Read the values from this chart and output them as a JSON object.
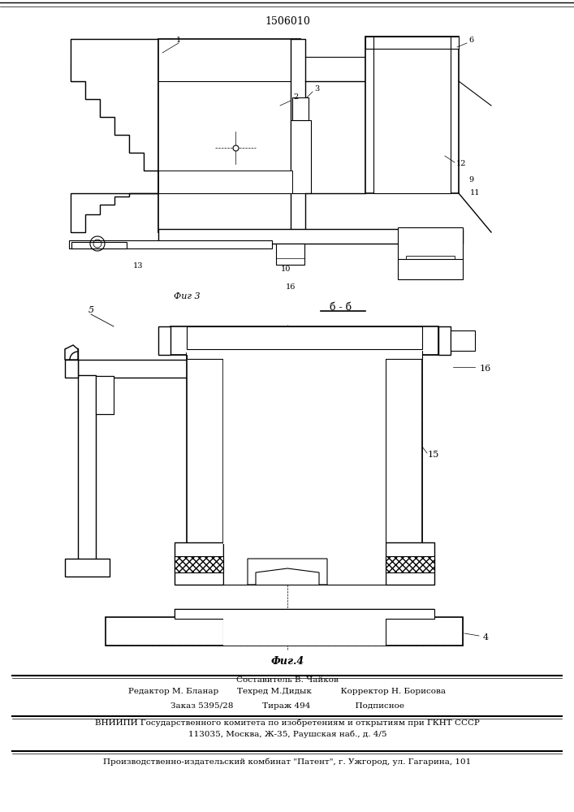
{
  "patent_number": "1506010",
  "bg_color": "#ffffff",
  "fig_size": [
    7.07,
    10.0
  ],
  "dpi": 100,
  "footer_lines": [
    "Составитель В. Чайков",
    "Редактор М. Бланар       Техред М.Дидык           Корректор Н. Борисова",
    "Заказ 5395/28           Тираж 494                 Подписное",
    "ВНИИПИ Государственного комитета по изобретениям и открытиям при ГКНТ СССР",
    "113035, Москва, Ж-35, Раушская наб., д. 4/5",
    "Производственно-издательский комбинат \"Патент\", г. Ужгород, ул. Гагарина, 101"
  ],
  "fig3_label": "Фиг 3",
  "fig4_label": "Фиг.4",
  "section_label": "б - б",
  "text_color": "#000000",
  "line_color": "#000000"
}
